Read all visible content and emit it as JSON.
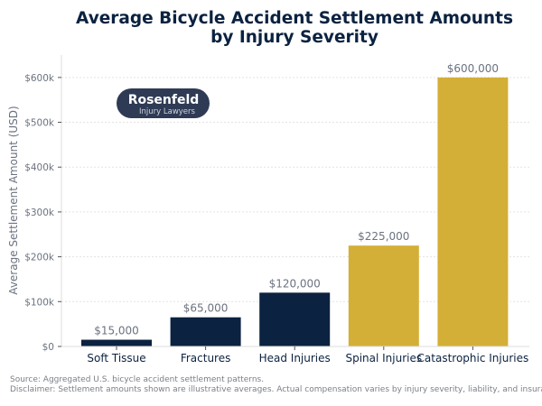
{
  "chart_data": {
    "type": "bar",
    "title": "Average Bicycle Accident Settlement Amounts\nby Injury Severity",
    "title_lines": [
      "Average Bicycle Accident Settlement Amounts",
      "by Injury Severity"
    ],
    "xlabel": "",
    "ylabel": "Average Settlement Amount (USD)",
    "categories": [
      "Soft Tissue",
      "Fractures",
      "Head Injuries",
      "Spinal Injuries",
      "Catastrophic Injuries"
    ],
    "values": [
      15000,
      65000,
      120000,
      225000,
      600000
    ],
    "data_labels": [
      "$15,000",
      "$65,000",
      "$120,000",
      "$225,000",
      "$600,000"
    ],
    "bar_colors": [
      "#0b2240",
      "#0b2240",
      "#0b2240",
      "#d4af37",
      "#d4af37"
    ],
    "ylim": [
      0,
      650000
    ],
    "yticks": [
      0,
      100000,
      200000,
      300000,
      400000,
      500000,
      600000
    ],
    "ytick_labels": [
      "$0",
      "$100k",
      "$200k",
      "$300k",
      "$400k",
      "$500k",
      "$600k"
    ],
    "grid": "y-dashed"
  },
  "logo": {
    "name": "Rosenfeld",
    "sub": "Injury Lawyers",
    "color": "#2f3b55"
  },
  "footer": {
    "source": "Source: Aggregated U.S. bicycle accident settlement patterns.",
    "disclaimer": "Disclaimer: Settlement amounts shown are illustrative averages. Actual compensation varies by injury severity, liability, and insurance"
  }
}
